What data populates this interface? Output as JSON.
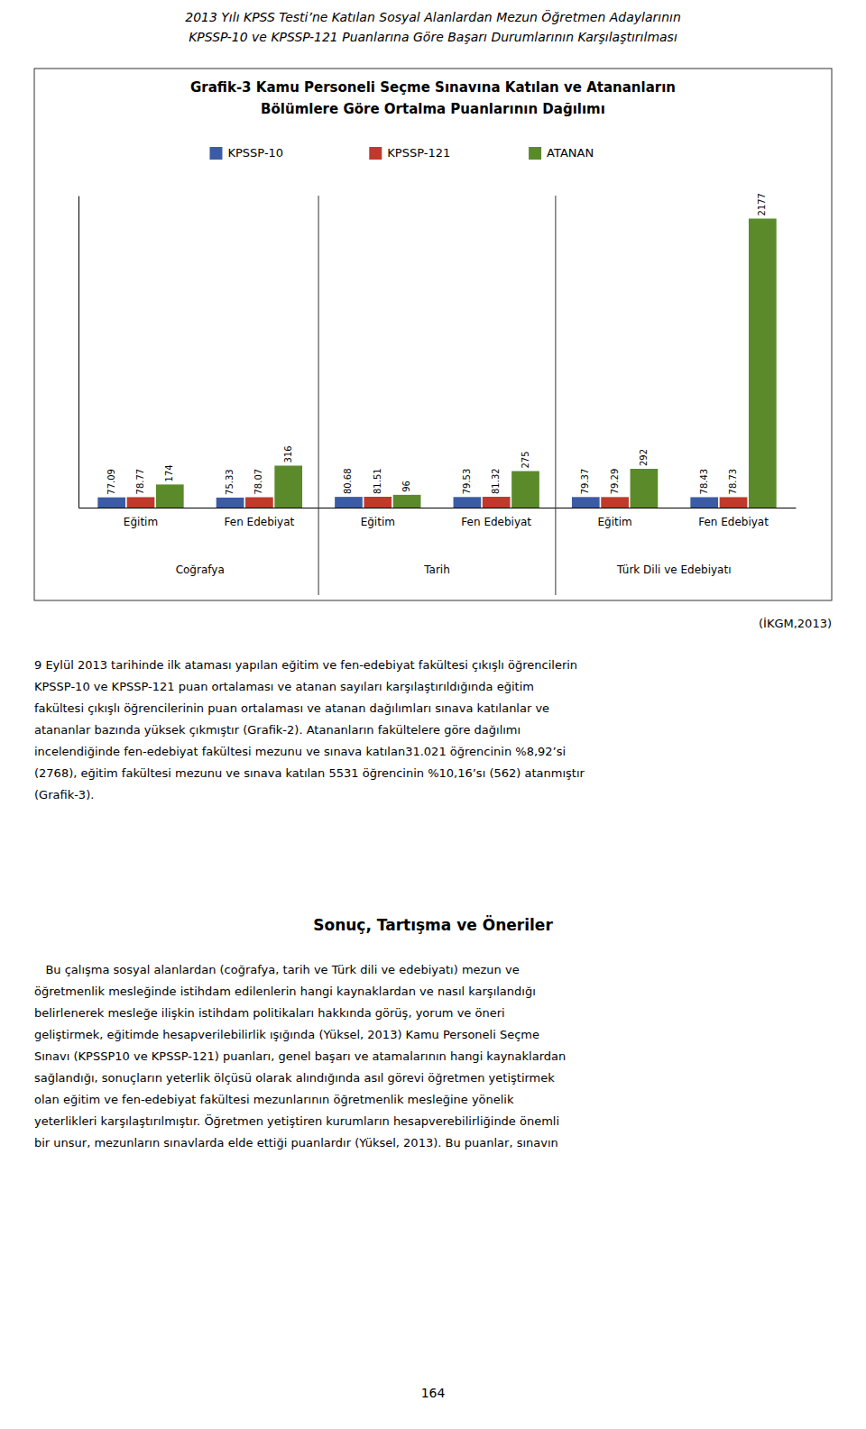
{
  "chart_data": {
    "type": "bar",
    "title": [
      "Grafik-3  Kamu Personeli Seçme Sınavına Katılan ve Atananların",
      "Bölümlere Göre Ortalma Puanlarının Dağılımı"
    ],
    "categories": [
      "Eğitim",
      "Fen Edebiyat",
      "Eğitim",
      "Fen Edebiyat",
      "Eğitim",
      "Fen Edebiyat"
    ],
    "section_labels": [
      "Coğrafya",
      "Tarih",
      "Türk Dili ve Edebiyatı"
    ],
    "series": [
      {
        "name": "KPSSP-10",
        "color": "#3b5ba5",
        "values": [
          77.09,
          75.33,
          80.68,
          79.53,
          79.37,
          78.43
        ]
      },
      {
        "name": "KPSSP-121",
        "color": "#c0392b",
        "values": [
          78.77,
          78.07,
          81.51,
          81.32,
          79.29,
          78.73
        ]
      },
      {
        "name": "ATANAN",
        "color": "#5a8a2a",
        "values": [
          174,
          316,
          96,
          275,
          292,
          2177
        ]
      }
    ],
    "ylim": [
      0,
      2350
    ],
    "grid": false,
    "legend": "top",
    "data_labels": true,
    "tick_labels": "x"
  },
  "page": {
    "header": [
      "2013 Yılı KPSS Testi’ne Katılan Sosyal Alanlardan Mezun Öğretmen Adaylarının",
      "KPSSP-10 ve KPSSP-121 Puanlarına Göre Başarı Durumlarının Karşılaştırılması"
    ],
    "source_note": "(İKGM,2013)",
    "paragraphs": [
      [
        "9 Eylül 2013 tarihinde ilk ataması yapılan eğitim ve fen-edebiyat fakültesi çıkışlı öğrencilerin",
        "KPSSP-10 ve KPSSP-121 puan ortalaması ve atanan sayıları karşılaştırıldığında eğitim",
        "fakültesi çıkışlı öğrencilerinin puan ortalaması ve atanan dağılımları sınava katılanlar ve",
        "atananlar bazında yüksek çıkmıştır (Grafik-2). Atananların fakültelere göre dağılımı",
        "incelendiğinde fen-edebiyat fakültesi mezunu ve sınava katılan31.021 öğrencinin %8,92’si",
        "(2768), eğitim fakültesi mezunu ve sınava katılan 5531 öğrencinin %10,16’sı (562) atanmıştır",
        "(Grafik-3)."
      ],
      [
        "   Bu çalışma sosyal alanlardan (coğrafya, tarih ve Türk dili ve edebiyatı) mezun ve",
        "öğretmenlik mesleğinde istihdam edilenlerin hangi kaynaklardan ve nasıl karşılandığı",
        "belirlenerek mesleğe ilişkin istihdam politikaları hakkında görüş, yorum ve öneri",
        "geliştirmek, eğitimde hesapverilebilirlik ışığında (Yüksel, 2013) Kamu Personeli Seçme",
        "Sınavı (KPSSP10 ve KPSSP-121) puanları, genel başarı ve atamalarının hangi kaynaklardan",
        "sağlandığı, sonuçların yeterlik ölçüsü olarak alındığında asıl görevi öğretmen yetiştirmek",
        "olan eğitim ve fen-edebiyat fakültesi mezunlarının öğretmenlik mesleğine yönelik",
        "yeterlikleri karşılaştırılmıştır. Öğretmen yetiştiren kurumların hesapverebilirliğinde önemli",
        "bir unsur, mezunların sınavlarda elde ettiği puanlardır (Yüksel, 2013). Bu puanlar, sınavın"
      ]
    ],
    "section_title": "Sonuç, Tartışma ve Öneriler",
    "page_number": "164"
  }
}
